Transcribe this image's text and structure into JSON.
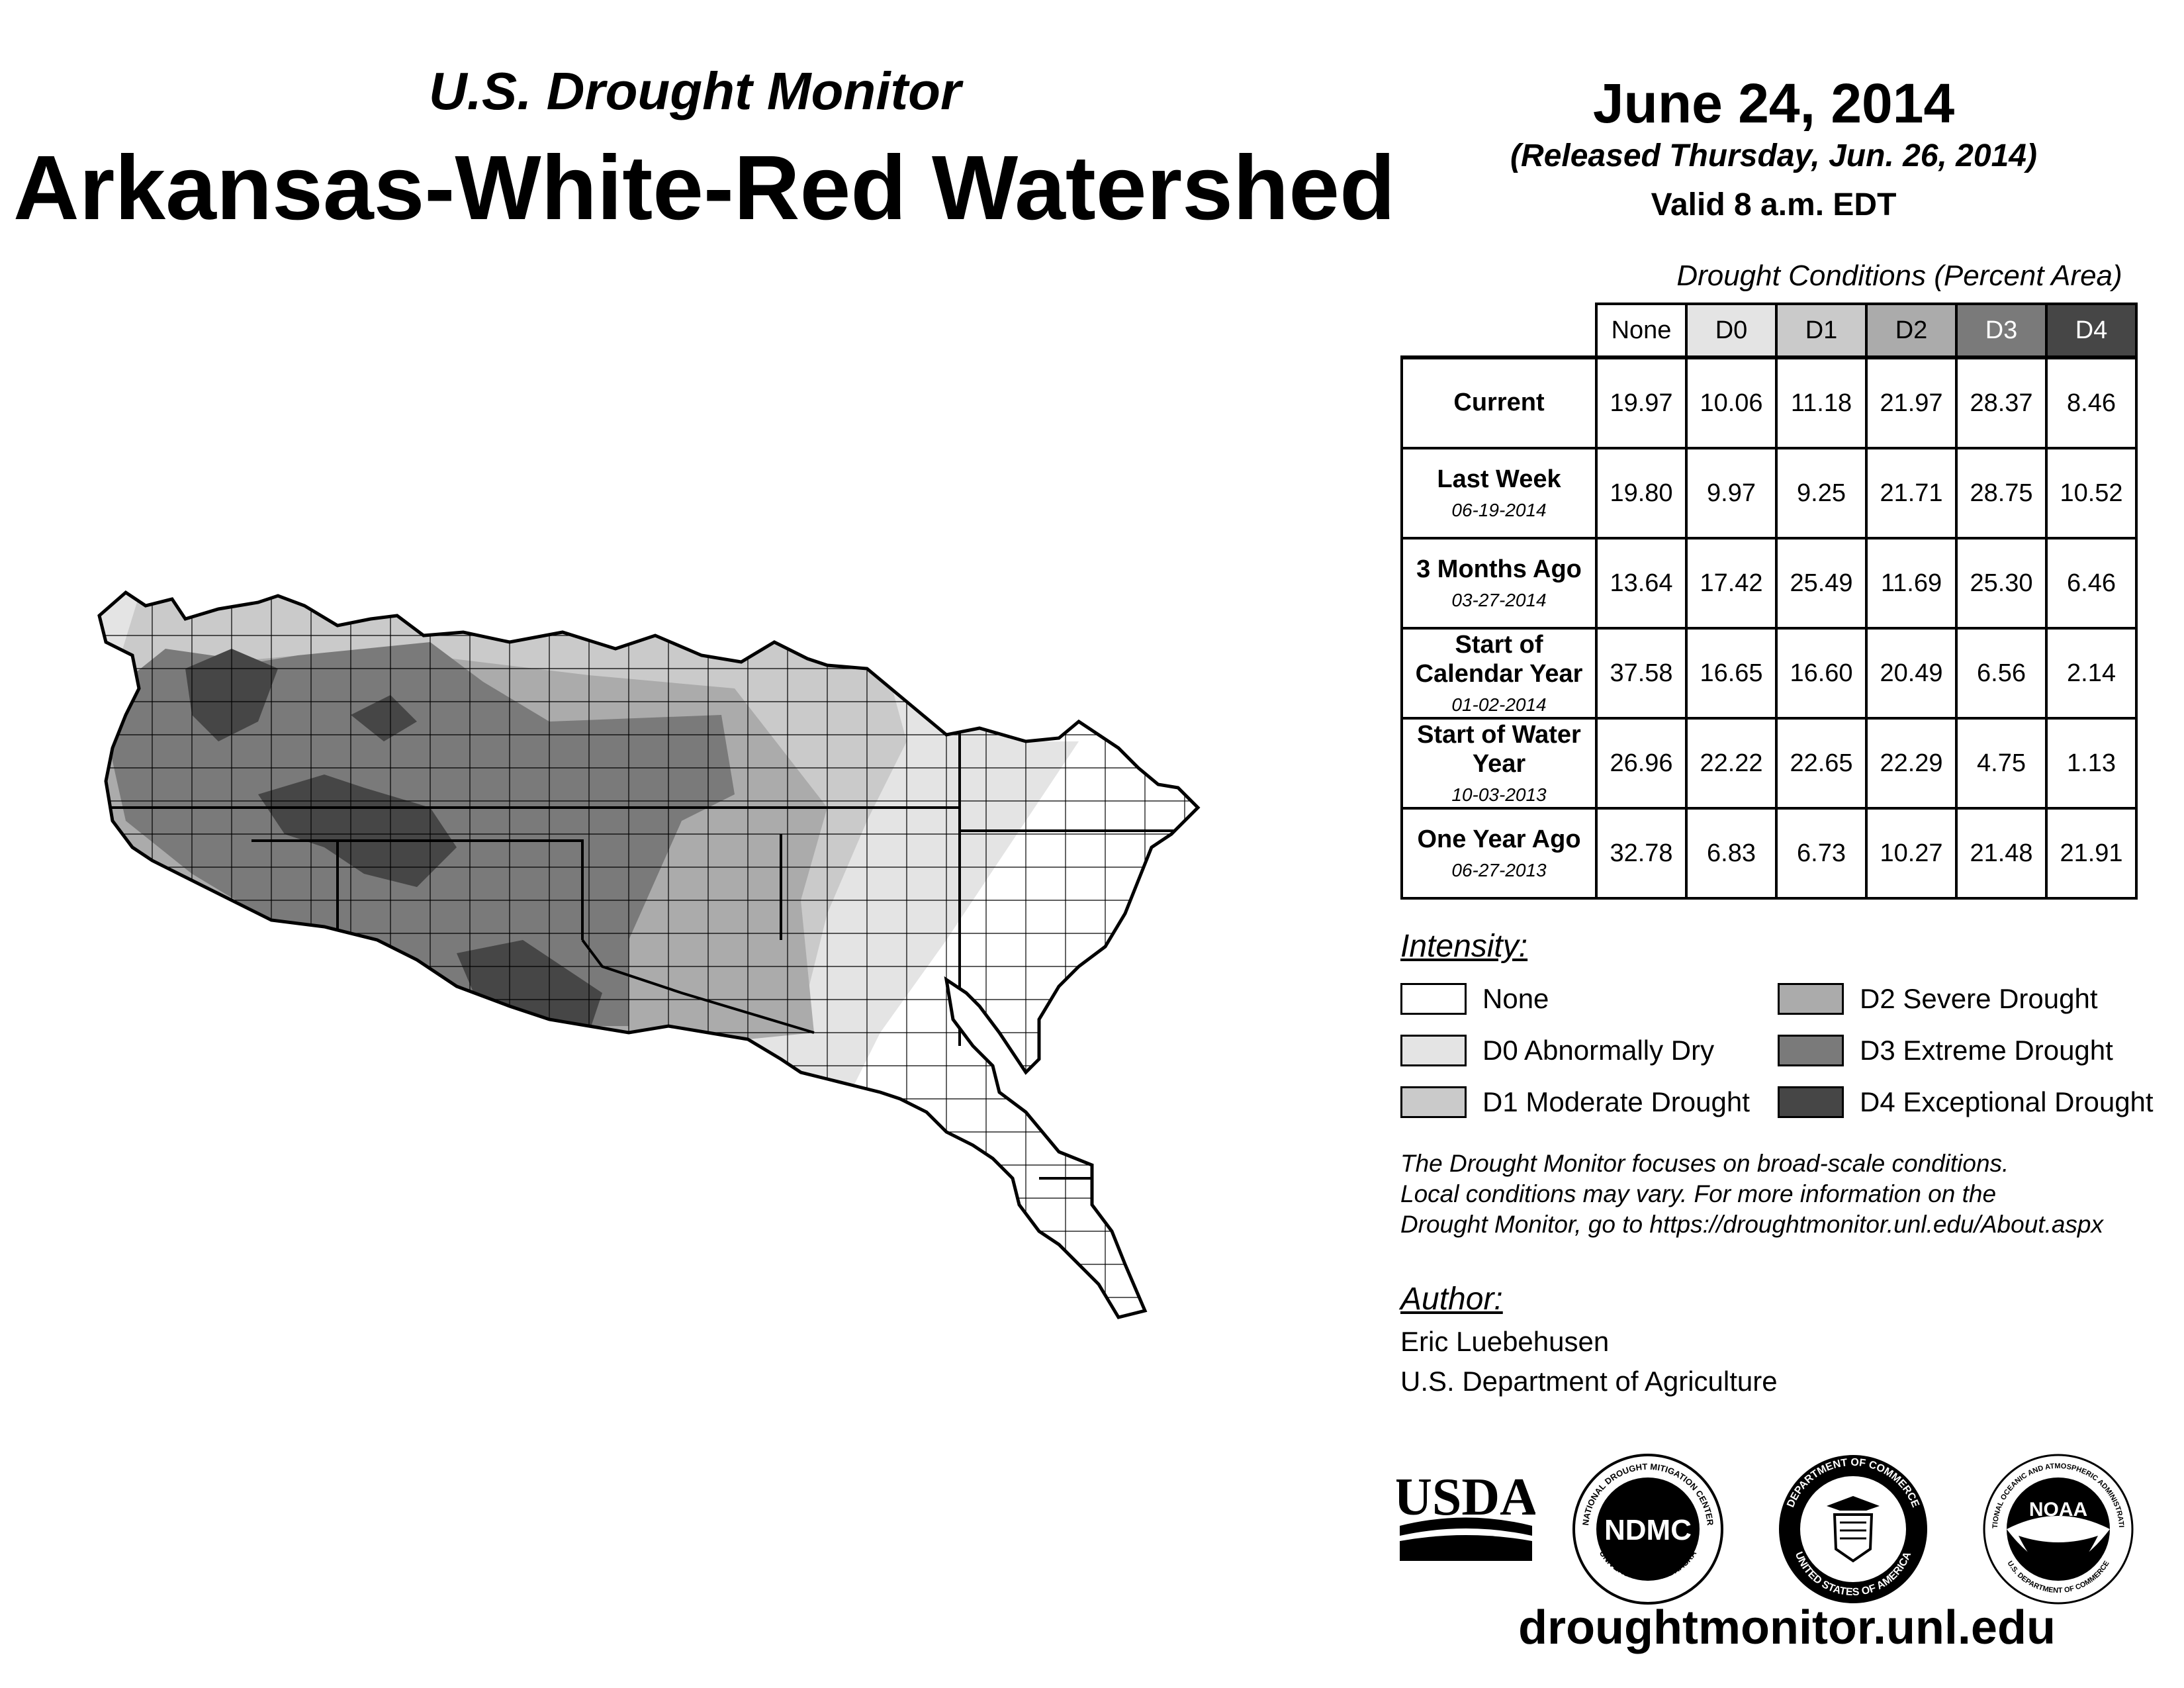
{
  "header": {
    "subtitle": "U.S. Drought Monitor",
    "title": "Arkansas-White-Red Watershed",
    "date": "June 24, 2014",
    "released": "(Released Thursday, Jun. 26, 2014)",
    "valid": "Valid 8 a.m. EDT"
  },
  "table": {
    "caption": "Drought Conditions (Percent Area)",
    "columns": [
      "None",
      "D0",
      "D1",
      "D2",
      "D3",
      "D4"
    ],
    "rows": [
      {
        "label": "Current",
        "date": "",
        "values": [
          "19.97",
          "10.06",
          "11.18",
          "21.97",
          "28.37",
          "8.46"
        ]
      },
      {
        "label": "Last Week",
        "date": "06-19-2014",
        "values": [
          "19.80",
          "9.97",
          "9.25",
          "21.71",
          "28.75",
          "10.52"
        ]
      },
      {
        "label": "3 Months Ago",
        "date": "03-27-2014",
        "values": [
          "13.64",
          "17.42",
          "25.49",
          "11.69",
          "25.30",
          "6.46"
        ]
      },
      {
        "label": "Start of Calendar Year",
        "date": "01-02-2014",
        "values": [
          "37.58",
          "16.65",
          "16.60",
          "20.49",
          "6.56",
          "2.14"
        ]
      },
      {
        "label": "Start of Water Year",
        "date": "10-03-2013",
        "values": [
          "26.96",
          "22.22",
          "22.65",
          "22.29",
          "4.75",
          "1.13"
        ]
      },
      {
        "label": "One Year Ago",
        "date": "06-27-2013",
        "values": [
          "32.78",
          "6.83",
          "6.73",
          "10.27",
          "21.48",
          "21.91"
        ]
      }
    ]
  },
  "legend": {
    "title": "Intensity:",
    "items": [
      {
        "label": "None",
        "color": "#ffffff"
      },
      {
        "label": "D0 Abnormally Dry",
        "color": "#e4e4e4"
      },
      {
        "label": "D1 Moderate Drought",
        "color": "#cacaca"
      },
      {
        "label": "D2 Severe Drought",
        "color": "#ababab"
      },
      {
        "label": "D3 Extreme Drought",
        "color": "#7a7a7a"
      },
      {
        "label": "D4 Exceptional Drought",
        "color": "#464646"
      }
    ]
  },
  "note": {
    "line1": "The Drought Monitor focuses on broad-scale conditions.",
    "line2": "Local conditions may vary. For more information on the",
    "line3": "Drought Monitor, go to https://droughtmonitor.unl.edu/About.aspx"
  },
  "author": {
    "label": "Author:",
    "name": "Eric Luebehusen",
    "org": "U.S. Department of Agriculture"
  },
  "logos": {
    "usda": "USDA",
    "ndmc": "NDMC",
    "ndmc_ring_top": "NATIONAL DROUGHT MITIGATION CENTER",
    "ndmc_ring_bottom": "UNIVERSITY OF NEBRASKA",
    "doc_ring_top": "DEPARTMENT OF COMMERCE",
    "doc_ring_bottom": "UNITED STATES OF AMERICA",
    "noaa": "NOAA",
    "noaa_ring_top": "NATIONAL OCEANIC AND ATMOSPHERIC ADMINISTRATION",
    "noaa_ring_bottom": "U.S. DEPARTMENT OF COMMERCE"
  },
  "website": "droughtmonitor.unl.edu"
}
